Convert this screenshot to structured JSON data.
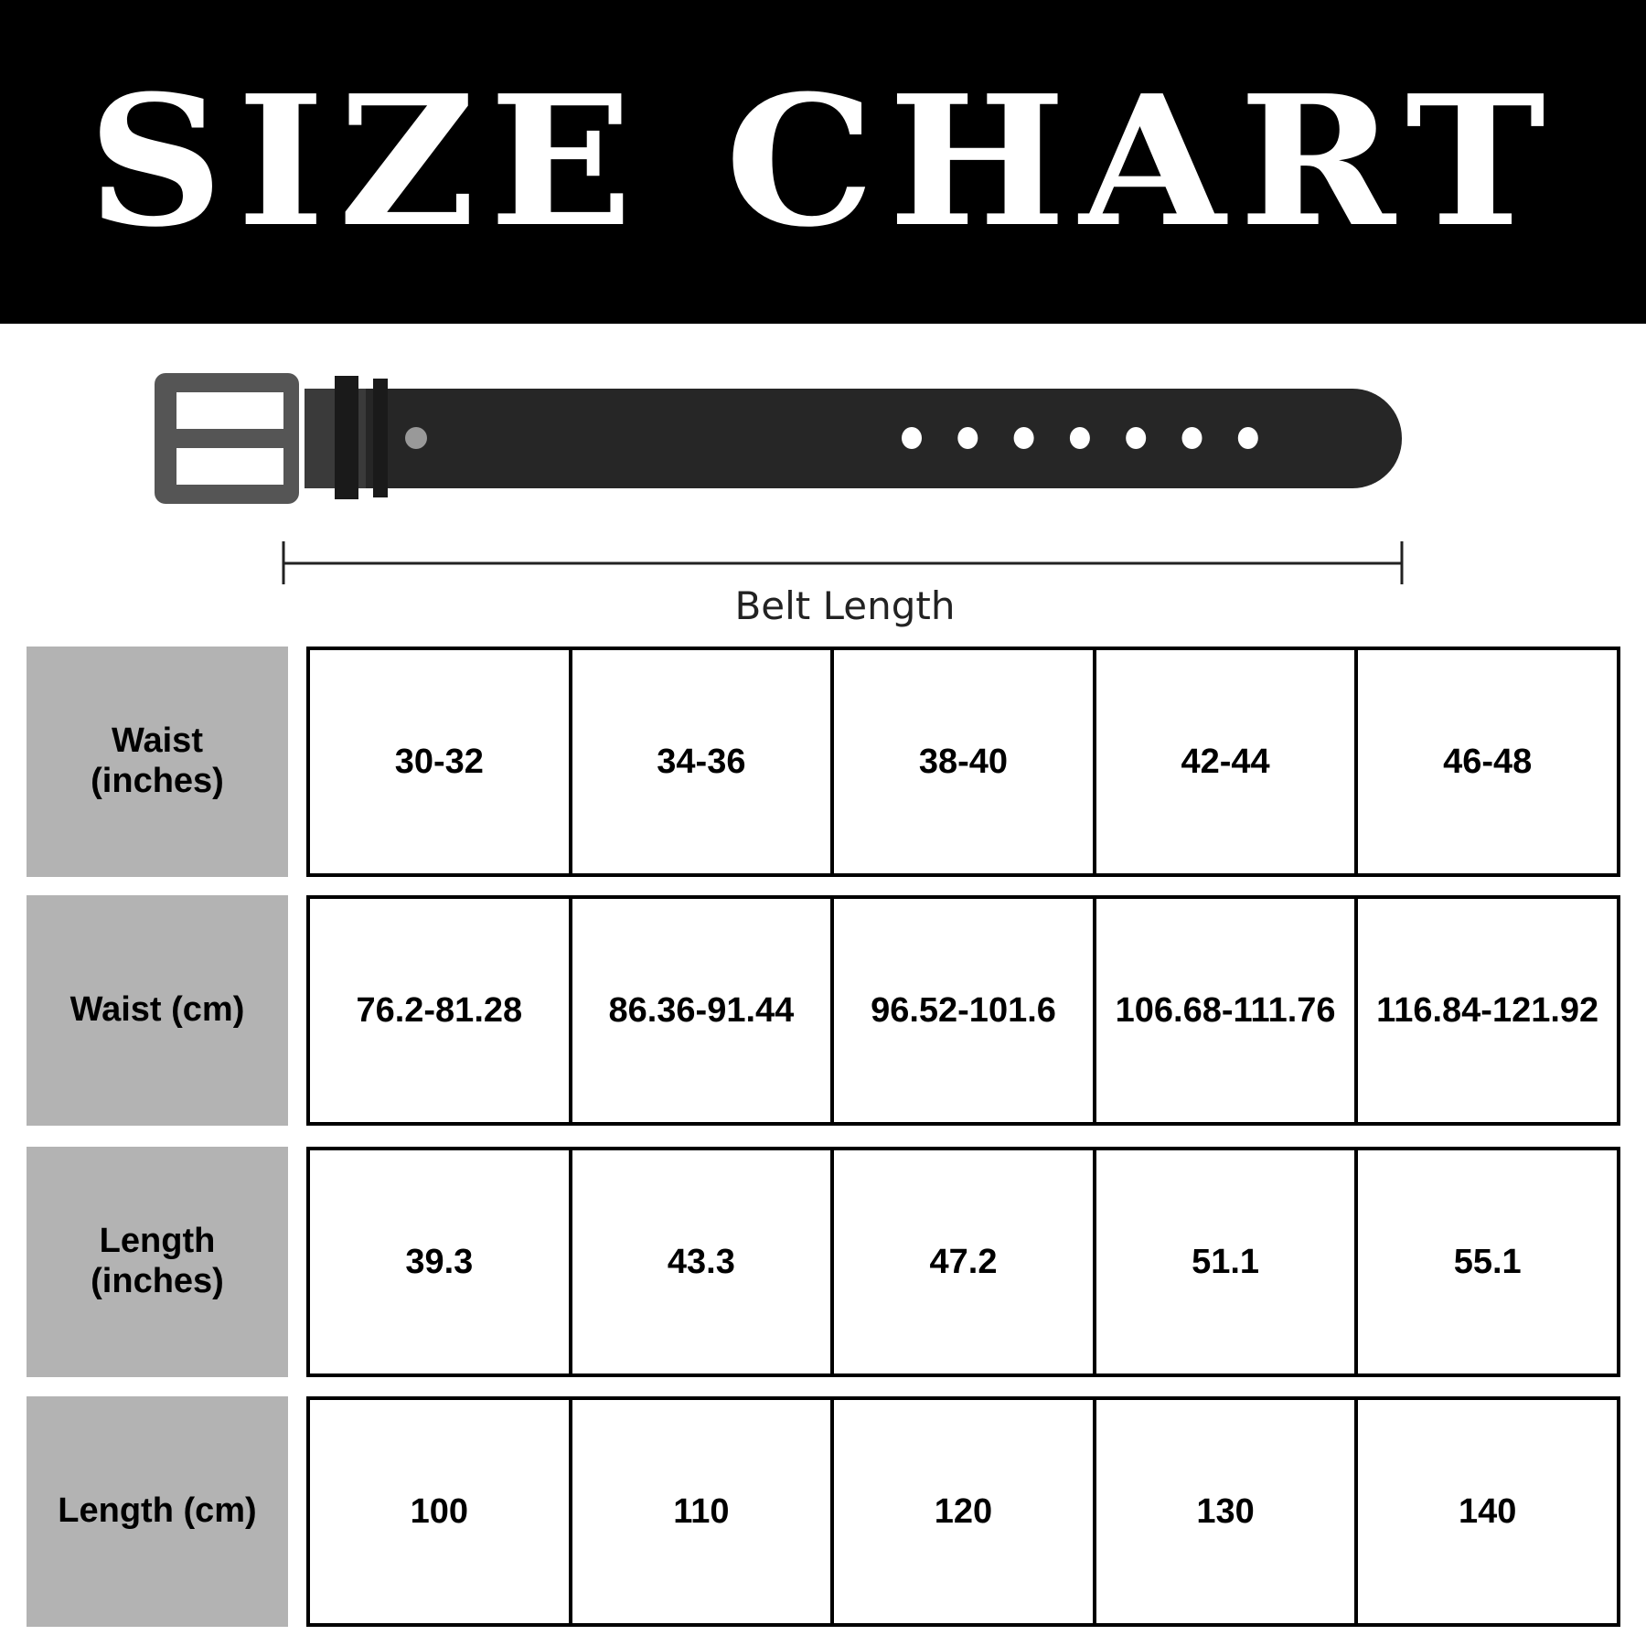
{
  "title": "SIZE CHART",
  "diagram": {
    "measure_label": "Belt Length",
    "hole_count": 7
  },
  "colors": {
    "header_bg": "#000000",
    "label_bg": "#b3b3b3",
    "belt": "#262626",
    "buckle": "#555555"
  },
  "table": {
    "rows": [
      {
        "label": "Waist (inches)",
        "values": [
          "30-32",
          "34-36",
          "38-40",
          "42-44",
          "46-48"
        ]
      },
      {
        "label": "Waist (cm)",
        "values": [
          "76.2-81.28",
          "86.36-91.44",
          "96.52-101.6",
          "106.68-111.76",
          "116.84-121.92"
        ]
      },
      {
        "label": "Length (inches)",
        "values": [
          "39.3",
          "43.3",
          "47.2",
          "51.1",
          "55.1"
        ]
      },
      {
        "label": "Length (cm)",
        "values": [
          "100",
          "110",
          "120",
          "130",
          "140"
        ]
      }
    ]
  }
}
